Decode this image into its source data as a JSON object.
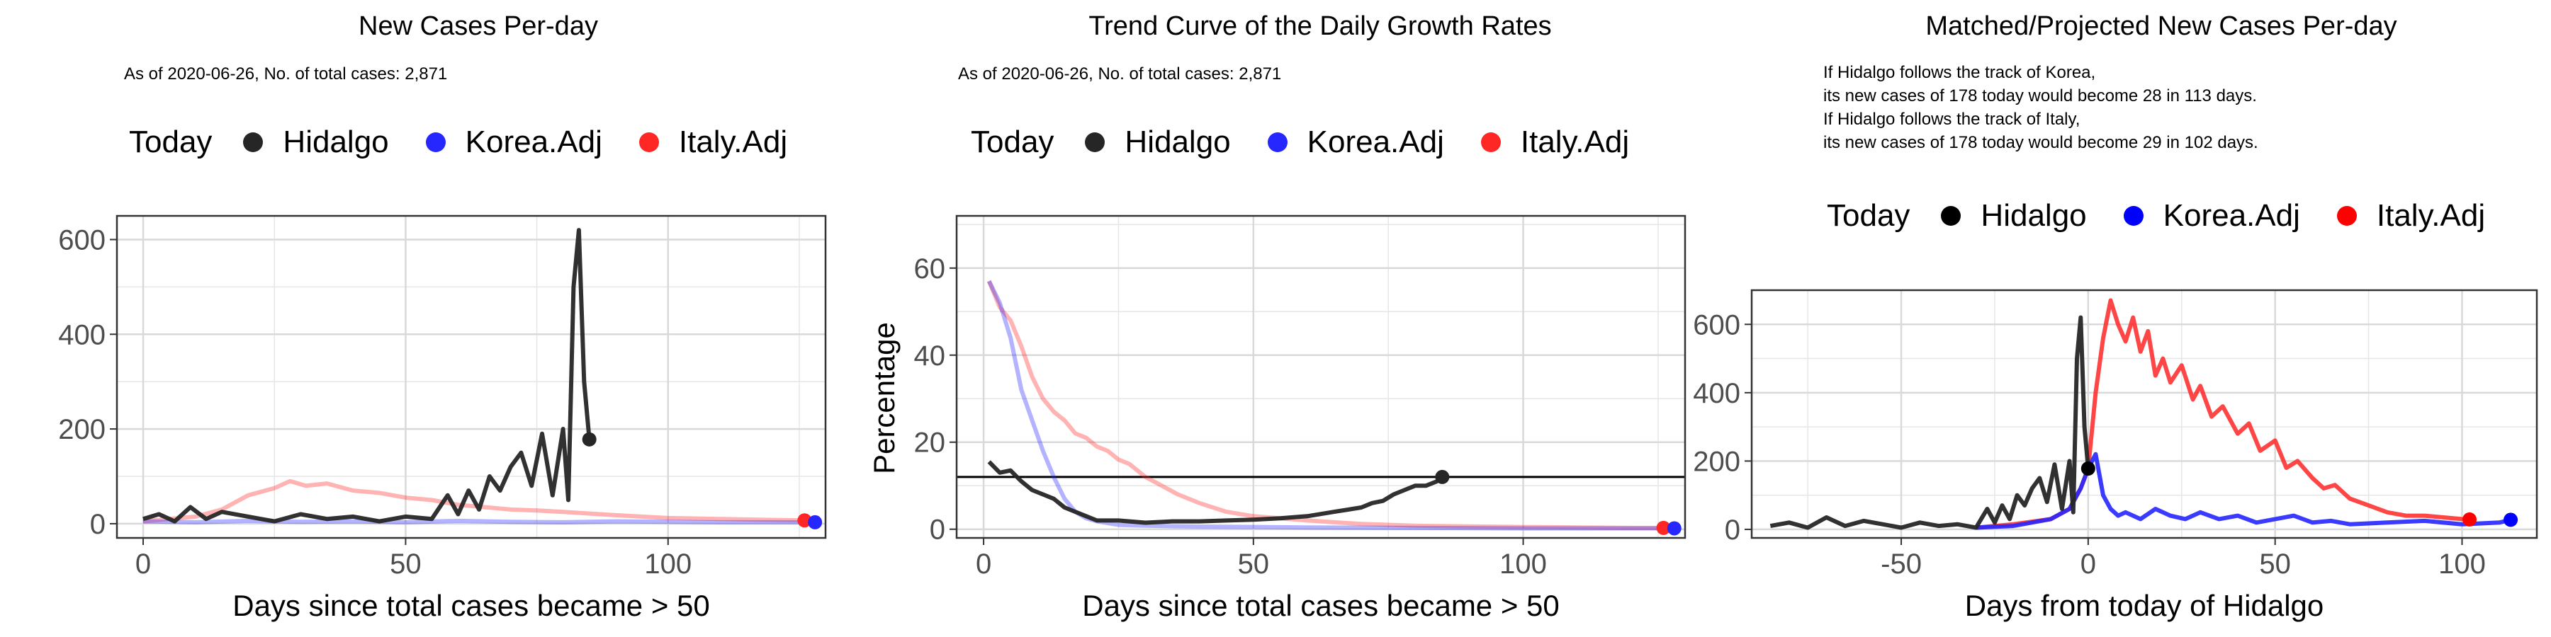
{
  "colors": {
    "hidalgo": "#262626",
    "korea": "#2626ff",
    "italy": "#ff2626",
    "grid": "#e6e6e6"
  },
  "legend_title": "Today",
  "panels": [
    {
      "title": "New Cases Per-day",
      "subtitle": [
        "As of 2020-06-26, No. of total cases: 2,871"
      ],
      "legend": [
        "Hidalgo",
        "Korea.Adj",
        "Italy.Adj"
      ]
    },
    {
      "title": "Trend Curve of the Daily Growth Rates",
      "subtitle": [
        "As of 2020-06-26, No. of total cases: 2,871"
      ],
      "legend": [
        "Hidalgo",
        "Korea.Adj",
        "Italy.Adj"
      ]
    },
    {
      "title": "Matched/Projected New Cases Per-day",
      "subtitle": [
        "If Hidalgo follows the track of Korea,",
        "its new cases of 178 today would become 28 in 113 days.",
        "If Hidalgo follows the track of Italy,",
        "its new cases of 178 today would become 29 in 102 days."
      ],
      "legend": [
        "Hidalgo",
        "Korea.Adj",
        "Italy.Adj"
      ]
    }
  ],
  "chart_data": [
    {
      "type": "line",
      "title": "New Cases Per-day",
      "xlabel": "Days since total cases became > 50",
      "ylabel": "",
      "xlim": [
        -5,
        130
      ],
      "ylim": [
        -30,
        650
      ],
      "xticks": [
        0,
        50,
        100
      ],
      "yticks": [
        0,
        200,
        400,
        600
      ],
      "series": [
        {
          "name": "Hidalgo",
          "x": [
            0,
            3,
            6,
            9,
            12,
            15,
            20,
            25,
            30,
            35,
            40,
            45,
            50,
            55,
            58,
            60,
            62,
            64,
            66,
            68,
            70,
            72,
            74,
            76,
            78,
            80,
            81,
            82,
            83,
            84,
            85
          ],
          "y": [
            10,
            20,
            5,
            35,
            10,
            25,
            15,
            5,
            20,
            10,
            15,
            5,
            15,
            10,
            60,
            20,
            70,
            30,
            100,
            70,
            120,
            150,
            80,
            190,
            60,
            200,
            50,
            500,
            620,
            300,
            178
          ]
        },
        {
          "name": "Korea.Adj",
          "x": [
            0,
            10,
            20,
            30,
            40,
            50,
            60,
            70,
            80,
            90,
            100,
            110,
            120,
            128
          ],
          "y": [
            5,
            3,
            6,
            4,
            5,
            3,
            6,
            4,
            3,
            5,
            4,
            3,
            3,
            3
          ]
        },
        {
          "name": "Italy.Adj",
          "x": [
            0,
            10,
            15,
            20,
            25,
            28,
            31,
            35,
            40,
            45,
            50,
            55,
            60,
            65,
            70,
            75,
            80,
            90,
            100,
            110,
            120,
            126
          ],
          "y": [
            5,
            15,
            30,
            60,
            75,
            90,
            80,
            85,
            70,
            65,
            55,
            50,
            40,
            35,
            30,
            28,
            25,
            18,
            12,
            10,
            8,
            7
          ]
        }
      ],
      "today_points": [
        {
          "series": "Hidalgo",
          "x": 85,
          "y": 178
        },
        {
          "series": "Italy.Adj",
          "x": 126,
          "y": 7
        },
        {
          "series": "Korea.Adj",
          "x": 128,
          "y": 3
        }
      ],
      "grid": true,
      "legend_position": "top"
    },
    {
      "type": "line",
      "title": "Trend Curve of the Daily Growth Rates",
      "xlabel": "Days since total cases became > 50",
      "ylabel": "Percentage",
      "xlim": [
        -5,
        130
      ],
      "ylim": [
        -2,
        72
      ],
      "xticks": [
        0,
        50,
        100
      ],
      "yticks": [
        0,
        20,
        40,
        60
      ],
      "hline": 12,
      "series": [
        {
          "name": "Hidalgo",
          "x": [
            1,
            3,
            5,
            7,
            9,
            11,
            13,
            15,
            17,
            19,
            21,
            25,
            30,
            35,
            40,
            45,
            50,
            55,
            60,
            65,
            70,
            72,
            74,
            76,
            78,
            80,
            82,
            84,
            85
          ],
          "y": [
            15.5,
            13,
            13.5,
            11,
            9,
            8,
            7,
            5,
            4,
            3,
            2,
            2,
            1.5,
            1.8,
            1.8,
            2,
            2.2,
            2.5,
            3,
            4,
            5,
            6,
            6.5,
            8,
            9,
            10,
            10,
            11,
            12
          ]
        },
        {
          "name": "Korea.Adj",
          "x": [
            1,
            3,
            5,
            7,
            9,
            11,
            13,
            15,
            17,
            19,
            21,
            25,
            30,
            40,
            60,
            80,
            100,
            120,
            128
          ],
          "y": [
            57,
            52,
            44,
            32,
            25,
            18,
            12,
            7,
            4,
            2.5,
            1.8,
            1,
            0.8,
            0.6,
            0.4,
            0.3,
            0.2,
            0.2,
            0.2
          ]
        },
        {
          "name": "Italy.Adj",
          "x": [
            1,
            3,
            5,
            7,
            9,
            11,
            13,
            15,
            17,
            19,
            21,
            23,
            25,
            27,
            30,
            33,
            36,
            40,
            45,
            50,
            60,
            70,
            80,
            100,
            120,
            126
          ],
          "y": [
            57,
            51,
            48,
            42,
            35,
            30,
            27,
            25,
            22,
            21,
            19,
            18,
            16,
            15,
            12,
            10,
            8,
            6,
            4,
            3,
            2,
            1.2,
            0.8,
            0.5,
            0.3,
            0.3
          ]
        }
      ],
      "today_points": [
        {
          "series": "Hidalgo",
          "x": 85,
          "y": 12
        },
        {
          "series": "Italy.Adj",
          "x": 126,
          "y": 0.3
        },
        {
          "series": "Korea.Adj",
          "x": 128,
          "y": 0.2
        }
      ],
      "grid": true,
      "legend_position": "top"
    },
    {
      "type": "line",
      "title": "Matched/Projected New Cases Per-day",
      "xlabel": "Days from today of Hidalgo",
      "ylabel": "",
      "xlim": [
        -90,
        120
      ],
      "ylim": [
        -25,
        700
      ],
      "xticks": [
        -50,
        0,
        50,
        100
      ],
      "yticks": [
        0,
        200,
        400,
        600
      ],
      "series": [
        {
          "name": "Hidalgo",
          "x": [
            -85,
            -80,
            -75,
            -70,
            -65,
            -60,
            -55,
            -50,
            -45,
            -40,
            -35,
            -30,
            -27,
            -25,
            -23,
            -21,
            -19,
            -17,
            -15,
            -13,
            -11,
            -9,
            -7,
            -5,
            -4,
            -3,
            -2,
            -1,
            0
          ],
          "y": [
            10,
            20,
            5,
            35,
            10,
            25,
            15,
            5,
            20,
            10,
            15,
            5,
            60,
            20,
            70,
            30,
            100,
            70,
            120,
            150,
            80,
            190,
            60,
            200,
            50,
            500,
            620,
            300,
            178
          ]
        },
        {
          "name": "Korea.Adj",
          "x": [
            -30,
            -20,
            -10,
            -5,
            -2,
            0,
            2,
            4,
            6,
            8,
            10,
            14,
            18,
            22,
            26,
            30,
            35,
            40,
            45,
            50,
            55,
            60,
            65,
            70,
            80,
            90,
            100,
            110,
            113
          ],
          "y": [
            5,
            10,
            30,
            60,
            120,
            178,
            220,
            100,
            60,
            40,
            50,
            30,
            60,
            40,
            30,
            50,
            30,
            40,
            20,
            30,
            40,
            20,
            25,
            15,
            20,
            25,
            15,
            20,
            28
          ]
        },
        {
          "name": "Italy.Adj",
          "x": [
            -30,
            -20,
            -10,
            -5,
            -2,
            0,
            2,
            4,
            6,
            8,
            10,
            12,
            14,
            16,
            18,
            20,
            22,
            25,
            28,
            30,
            33,
            36,
            40,
            43,
            46,
            50,
            53,
            56,
            60,
            63,
            66,
            70,
            75,
            80,
            85,
            90,
            95,
            100,
            102
          ],
          "y": [
            5,
            15,
            30,
            60,
            120,
            178,
            400,
            560,
            670,
            600,
            550,
            620,
            520,
            580,
            450,
            500,
            430,
            480,
            380,
            420,
            330,
            360,
            280,
            310,
            230,
            260,
            180,
            200,
            150,
            120,
            130,
            90,
            70,
            50,
            40,
            40,
            35,
            30,
            29
          ]
        }
      ],
      "today_points": [
        {
          "series": "Hidalgo",
          "x": 0,
          "y": 178
        },
        {
          "series": "Italy.Adj",
          "x": 102,
          "y": 29
        },
        {
          "series": "Korea.Adj",
          "x": 113,
          "y": 28
        }
      ],
      "grid": true,
      "legend_position": "top"
    }
  ]
}
